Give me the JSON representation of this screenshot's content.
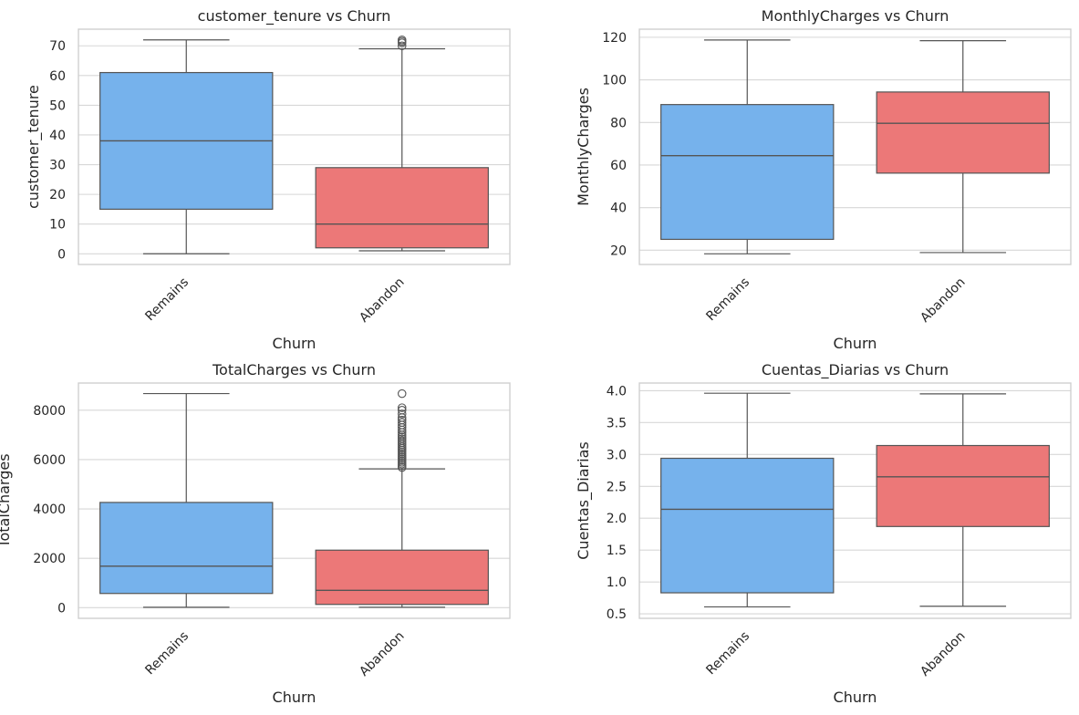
{
  "chart_data": [
    {
      "type": "box",
      "title": "customer_tenure vs Churn",
      "xlabel": "Churn",
      "ylabel": "customer_tenure",
      "categories": [
        "Remains",
        "Abandon"
      ],
      "ylim": [
        -3.6,
        75.6
      ],
      "yticks": [
        "0",
        "10",
        "20",
        "30",
        "40",
        "50",
        "60",
        "70"
      ],
      "ytick_values": [
        0,
        10,
        20,
        30,
        40,
        50,
        60,
        70
      ],
      "grid": true,
      "boxes": [
        {
          "category": "Remains",
          "color": "#76b2ec",
          "whisker_low": 0,
          "q1": 15,
          "median": 38,
          "q3": 61,
          "whisker_high": 72,
          "outliers": []
        },
        {
          "category": "Abandon",
          "color": "#ec7878",
          "whisker_low": 1,
          "q1": 2,
          "median": 10,
          "q3": 29,
          "whisker_high": 69,
          "outliers": [
            70,
            71,
            71.5,
            72
          ]
        }
      ]
    },
    {
      "type": "box",
      "title": "MonthlyCharges vs Churn",
      "xlabel": "Churn",
      "ylabel": "MonthlyCharges",
      "categories": [
        "Remains",
        "Abandon"
      ],
      "ylim": [
        13.3,
        123.8
      ],
      "yticks": [
        "20",
        "40",
        "60",
        "80",
        "100",
        "120"
      ],
      "ytick_values": [
        20,
        40,
        60,
        80,
        100,
        120
      ],
      "grid": true,
      "boxes": [
        {
          "category": "Remains",
          "color": "#76b2ec",
          "whisker_low": 18.3,
          "q1": 25.1,
          "median": 64.4,
          "q3": 88.4,
          "whisker_high": 118.7,
          "outliers": []
        },
        {
          "category": "Abandon",
          "color": "#ec7878",
          "whisker_low": 18.9,
          "q1": 56.2,
          "median": 79.6,
          "q3": 94.3,
          "whisker_high": 118.4,
          "outliers": []
        }
      ]
    },
    {
      "type": "box",
      "title": "TotalCharges vs Churn",
      "xlabel": "Churn",
      "ylabel": "TotalCharges",
      "categories": [
        "Remains",
        "Abandon"
      ],
      "ylim": [
        -430,
        9100
      ],
      "yticks": [
        "0",
        "2000",
        "4000",
        "6000",
        "8000"
      ],
      "ytick_values": [
        0,
        2000,
        4000,
        6000,
        8000
      ],
      "grid": true,
      "boxes": [
        {
          "category": "Remains",
          "color": "#76b2ec",
          "whisker_low": 18.8,
          "q1": 577,
          "median": 1683,
          "q3": 4264,
          "whisker_high": 8672,
          "outliers": []
        },
        {
          "category": "Abandon",
          "color": "#ec7878",
          "whisker_low": 18.9,
          "q1": 134,
          "median": 703,
          "q3": 2331,
          "whisker_high": 5624,
          "outliers": [
            5680,
            5750,
            5820,
            5890,
            5960,
            6030,
            6100,
            6170,
            6240,
            6310,
            6380,
            6450,
            6520,
            6600,
            6680,
            6760,
            6840,
            6920,
            7000,
            7100,
            7200,
            7300,
            7400,
            7500,
            7600,
            7700,
            7850,
            8000,
            8100,
            8670
          ]
        }
      ]
    },
    {
      "type": "box",
      "title": "Cuentas_Diarias vs Churn",
      "xlabel": "Churn",
      "ylabel": "Cuentas_Diarias",
      "categories": [
        "Remains",
        "Abandon"
      ],
      "ylim": [
        0.43,
        4.12
      ],
      "yticks": [
        "0.5",
        "1.0",
        "1.5",
        "2.0",
        "2.5",
        "3.0",
        "3.5",
        "4.0"
      ],
      "ytick_values": [
        0.5,
        1.0,
        1.5,
        2.0,
        2.5,
        3.0,
        3.5,
        4.0
      ],
      "grid": true,
      "boxes": [
        {
          "category": "Remains",
          "color": "#76b2ec",
          "whisker_low": 0.61,
          "q1": 0.83,
          "median": 2.14,
          "q3": 2.94,
          "whisker_high": 3.96,
          "outliers": []
        },
        {
          "category": "Abandon",
          "color": "#ec7878",
          "whisker_low": 0.62,
          "q1": 1.87,
          "median": 2.65,
          "q3": 3.14,
          "whisker_high": 3.95,
          "outliers": []
        }
      ]
    }
  ]
}
